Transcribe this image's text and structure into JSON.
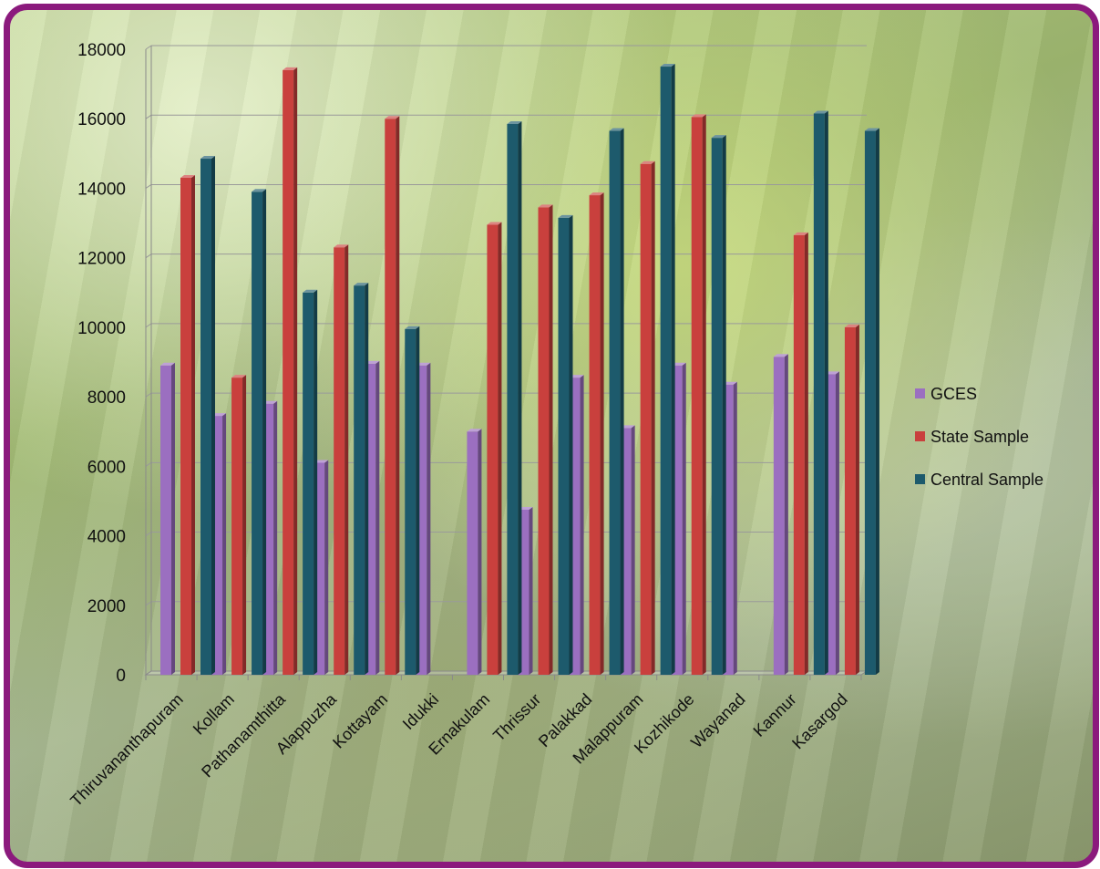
{
  "chart_data": {
    "type": "bar",
    "categories": [
      "Thiruvananthapuram",
      "Kollam",
      "Pathanamthitta",
      "Alappuzha",
      "Kottayam",
      "Idukki",
      "Ernakulam",
      "Thrissur",
      "Palakkad",
      "Malappuram",
      "Kozhikode",
      "Wayanad",
      "Kannur",
      "Kasargod"
    ],
    "series": [
      {
        "name": "GCES",
        "color": "#9b6fc0",
        "values": [
          8900,
          7450,
          7800,
          6100,
          8950,
          8900,
          7000,
          4750,
          8550,
          7100,
          8900,
          8350,
          9150,
          8650
        ]
      },
      {
        "name": "State Sample",
        "color": "#c9403d",
        "values": [
          14300,
          8550,
          17400,
          12300,
          16000,
          null,
          12950,
          13450,
          13800,
          14700,
          16050,
          null,
          12650,
          10000
        ]
      },
      {
        "name": "Central Sample",
        "color": "#1d5a6c",
        "values": [
          14850,
          13900,
          11000,
          11200,
          9950,
          null,
          15850,
          13150,
          15650,
          17500,
          15450,
          null,
          16150,
          15650
        ]
      }
    ],
    "ylim": [
      0,
      18000
    ],
    "yticks": [
      "0",
      "2000",
      "4000",
      "6000",
      "8000",
      "10000",
      "12000",
      "14000",
      "16000",
      "18000"
    ],
    "grid": true,
    "legend": "right"
  }
}
